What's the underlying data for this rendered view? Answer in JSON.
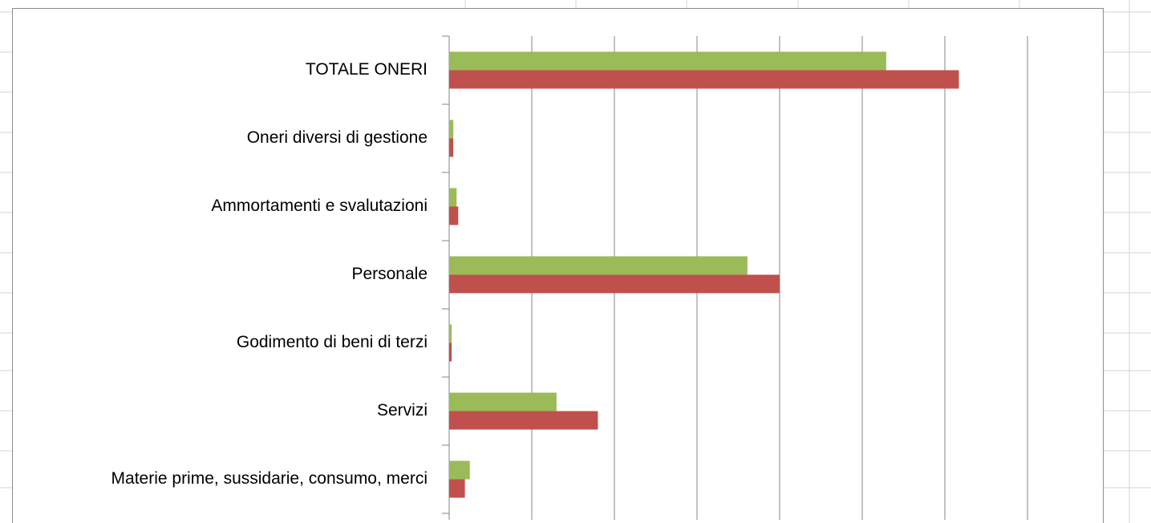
{
  "chart_data": {
    "type": "bar",
    "orientation": "horizontal",
    "categories": [
      "TOTALE ONERI",
      "Oneri diversi di gestione",
      "Ammortamenti e svalutazioni",
      "Personale",
      "Godimento di beni di terzi",
      "Servizi",
      "Materie prime, sussidarie, consumo, merci"
    ],
    "series": [
      {
        "color": "#9bbb59",
        "values": [
          5.29,
          0.05,
          0.09,
          3.61,
          0.03,
          1.3,
          0.25
        ]
      },
      {
        "color": "#c0504d",
        "values": [
          6.17,
          0.05,
          0.11,
          4.0,
          0.03,
          1.8,
          0.19
        ]
      }
    ],
    "xlim": [
      0,
      7
    ],
    "xticks": [
      0,
      1,
      2,
      3,
      4,
      5,
      6,
      7
    ],
    "grid": true
  }
}
